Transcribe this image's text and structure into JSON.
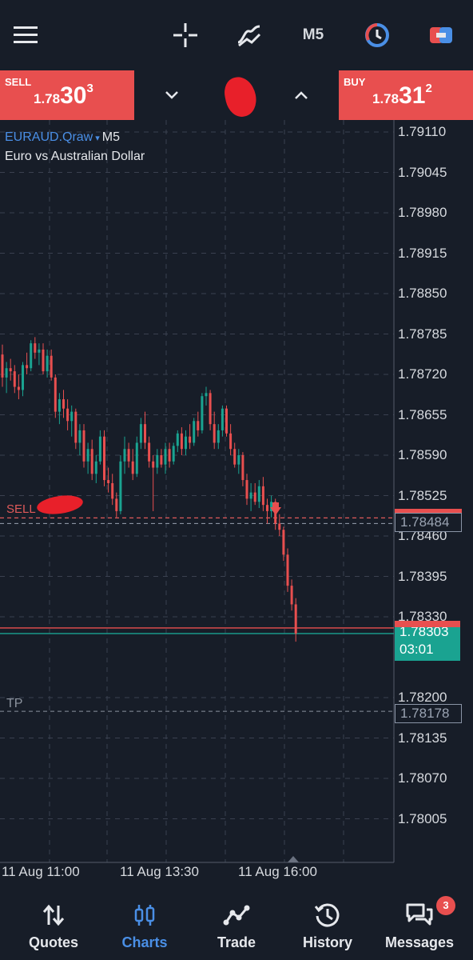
{
  "toolbar": {
    "menu_icon": "hamburger-icon",
    "crosshair_icon": "crosshair-icon",
    "indicators_icon": "indicators-icon",
    "timeframe": "M5",
    "clock_icon": "clock-icon",
    "objects_icon": "objects-icon"
  },
  "trade": {
    "sell_label": "SELL",
    "sell_price_main": "1.78",
    "sell_price_big": "30",
    "sell_price_sup": "3",
    "buy_label": "BUY",
    "buy_price_main": "1.78",
    "buy_price_big": "31",
    "buy_price_sup": "2",
    "lot_value": ""
  },
  "chart": {
    "symbol": "EURAUD.Qraw",
    "caret": "▾",
    "timeframe": "M5",
    "description": "Euro vs Australian Dollar",
    "sl_label": "SELL",
    "tp_label": "TP",
    "sl_price": "1.78484",
    "tp_price": "1.78178",
    "bid_price": "1.78303",
    "countdown": "03:01"
  },
  "chart_data": {
    "type": "candlestick",
    "y_ticks": [
      "1.79110",
      "1.79045",
      "1.78980",
      "1.78915",
      "1.78850",
      "1.78785",
      "1.78720",
      "1.78655",
      "1.78590",
      "1.78525",
      "1.78460",
      "1.78395",
      "1.78330",
      "1.78200",
      "1.78135",
      "1.78070",
      "1.78005"
    ],
    "x_ticks": [
      "11 Aug 11:00",
      "11 Aug 13:30",
      "11 Aug 16:00"
    ],
    "ylim": [
      1.7797,
      1.7916
    ],
    "grid": true,
    "bid": 1.78303,
    "ask": 1.78312,
    "stop_loss": 1.78484,
    "take_profit": 1.78178,
    "candles": [
      [
        1.78752,
        1.78768,
        1.787,
        1.78715
      ],
      [
        1.78715,
        1.7874,
        1.7869,
        1.7873
      ],
      [
        1.7873,
        1.78745,
        1.7871,
        1.78725
      ],
      [
        1.78725,
        1.78735,
        1.7869,
        1.787
      ],
      [
        1.787,
        1.7872,
        1.7868,
        1.78695
      ],
      [
        1.78695,
        1.7874,
        1.78685,
        1.78735
      ],
      [
        1.78735,
        1.78755,
        1.7872,
        1.7873
      ],
      [
        1.7873,
        1.78775,
        1.78725,
        1.7877
      ],
      [
        1.7877,
        1.7878,
        1.78745,
        1.78755
      ],
      [
        1.78755,
        1.7877,
        1.78735,
        1.7876
      ],
      [
        1.7876,
        1.7877,
        1.7872,
        1.78725
      ],
      [
        1.78725,
        1.7876,
        1.78715,
        1.7875
      ],
      [
        1.7875,
        1.7876,
        1.7871,
        1.78715
      ],
      [
        1.78715,
        1.7872,
        1.7865,
        1.7866
      ],
      [
        1.7866,
        1.7869,
        1.7864,
        1.7868
      ],
      [
        1.7868,
        1.78695,
        1.7865,
        1.78665
      ],
      [
        1.78665,
        1.7868,
        1.7863,
        1.78645
      ],
      [
        1.78645,
        1.7867,
        1.7862,
        1.7866
      ],
      [
        1.7866,
        1.78665,
        1.786,
        1.7861
      ],
      [
        1.7861,
        1.7864,
        1.7859,
        1.7863
      ],
      [
        1.7863,
        1.7864,
        1.7857,
        1.7858
      ],
      [
        1.7858,
        1.7861,
        1.7856,
        1.786
      ],
      [
        1.786,
        1.78615,
        1.7855,
        1.7856
      ],
      [
        1.7856,
        1.7859,
        1.78545,
        1.7858
      ],
      [
        1.7858,
        1.7863,
        1.78575,
        1.7862
      ],
      [
        1.7862,
        1.7863,
        1.7854,
        1.7855
      ],
      [
        1.7855,
        1.7857,
        1.7853,
        1.78545
      ],
      [
        1.78545,
        1.7856,
        1.7851,
        1.7852
      ],
      [
        1.7852,
        1.7853,
        1.7849,
        1.785
      ],
      [
        1.785,
        1.7859,
        1.78495,
        1.7858
      ],
      [
        1.7858,
        1.7862,
        1.7856,
        1.786
      ],
      [
        1.786,
        1.7861,
        1.7857,
        1.7858
      ],
      [
        1.7858,
        1.786,
        1.7855,
        1.7856
      ],
      [
        1.7856,
        1.7862,
        1.78555,
        1.7861
      ],
      [
        1.7861,
        1.7865,
        1.786,
        1.7864
      ],
      [
        1.7864,
        1.7866,
        1.786,
        1.7861
      ],
      [
        1.7861,
        1.7862,
        1.7857,
        1.7858
      ],
      [
        1.7858,
        1.7859,
        1.785,
        1.7857
      ],
      [
        1.7857,
        1.786,
        1.7856,
        1.7859
      ],
      [
        1.7859,
        1.786,
        1.7857,
        1.78575
      ],
      [
        1.78575,
        1.7861,
        1.7856,
        1.786
      ],
      [
        1.786,
        1.7861,
        1.7857,
        1.7858
      ],
      [
        1.7858,
        1.7861,
        1.78575,
        1.78605
      ],
      [
        1.78605,
        1.7863,
        1.78595,
        1.78625
      ],
      [
        1.78625,
        1.78635,
        1.7859,
        1.786
      ],
      [
        1.786,
        1.7863,
        1.7859,
        1.7862
      ],
      [
        1.7862,
        1.7864,
        1.786,
        1.7861
      ],
      [
        1.7861,
        1.7865,
        1.78605,
        1.78645
      ],
      [
        1.78645,
        1.7866,
        1.7862,
        1.7863
      ],
      [
        1.7863,
        1.7869,
        1.78625,
        1.78685
      ],
      [
        1.78685,
        1.787,
        1.7867,
        1.7869
      ],
      [
        1.7869,
        1.78695,
        1.7863,
        1.7864
      ],
      [
        1.7864,
        1.7866,
        1.786,
        1.7861
      ],
      [
        1.7861,
        1.7864,
        1.786,
        1.7863
      ],
      [
        1.7863,
        1.7867,
        1.7862,
        1.78665
      ],
      [
        1.78665,
        1.7867,
        1.7862,
        1.78625
      ],
      [
        1.78625,
        1.7864,
        1.7859,
        1.786
      ],
      [
        1.786,
        1.7861,
        1.7857,
        1.78575
      ],
      [
        1.78575,
        1.786,
        1.7856,
        1.7859
      ],
      [
        1.7859,
        1.78595,
        1.7854,
        1.7855
      ],
      [
        1.7855,
        1.7856,
        1.7851,
        1.7852
      ],
      [
        1.7852,
        1.78545,
        1.785,
        1.7853
      ],
      [
        1.7853,
        1.78545,
        1.7851,
        1.78515
      ],
      [
        1.78515,
        1.7855,
        1.78505,
        1.7854
      ],
      [
        1.7854,
        1.78555,
        1.785,
        1.7851
      ],
      [
        1.7851,
        1.7852,
        1.7848,
        1.785
      ],
      [
        1.785,
        1.78525,
        1.7849,
        1.78515
      ],
      [
        1.78515,
        1.7852,
        1.7847,
        1.7848
      ],
      [
        1.7848,
        1.78495,
        1.7846,
        1.7847
      ],
      [
        1.7847,
        1.78475,
        1.7842,
        1.7843
      ],
      [
        1.7843,
        1.7844,
        1.7837,
        1.7838
      ],
      [
        1.7838,
        1.7839,
        1.7834,
        1.7835
      ],
      [
        1.7835,
        1.7836,
        1.7829,
        1.78303
      ]
    ]
  },
  "nav": [
    {
      "label": "Quotes",
      "icon": "sort-arrows-icon"
    },
    {
      "label": "Charts",
      "icon": "candlestick-icon"
    },
    {
      "label": "Trade",
      "icon": "trade-line-icon"
    },
    {
      "label": "History",
      "icon": "history-icon"
    },
    {
      "label": "Messages",
      "icon": "chat-icon",
      "badge": "3"
    }
  ],
  "colors": {
    "background": "#171d28",
    "bull": "#1aa391",
    "bear": "#e84f4f",
    "accent": "#4a8fe6",
    "grid": "#3a4150"
  }
}
